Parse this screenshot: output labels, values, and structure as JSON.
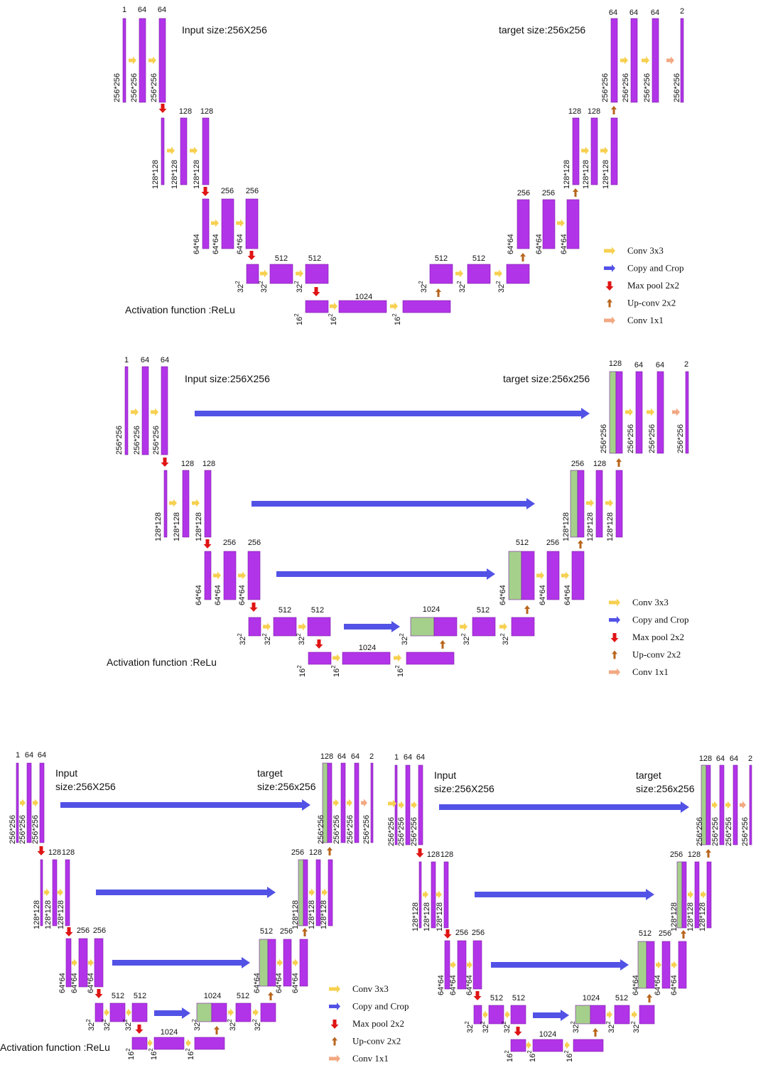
{
  "colors": {
    "feature_map": "#b234e8",
    "feature_map_edge": "#7a1aa8",
    "copied_map": "#a5d08c",
    "conv3x3": "#f7d050",
    "copy_crop": "#5252e6",
    "max_pool": "#e01414",
    "up_conv": "#b8651c",
    "conv1x1": "#f2a882"
  },
  "icons": {
    "conv3x3": "yellow-arrow-right-icon",
    "copy_crop": "blue-arrow-right-icon",
    "max_pool": "red-arrow-down-icon",
    "up_conv": "brown-arrow-up-icon",
    "conv1x1": "salmon-arrow-right-icon"
  },
  "legend": {
    "conv3x3": "Conv 3x3",
    "copy_crop": "Copy and Crop",
    "max_pool": "Max pool 2x2",
    "up_conv": "Up-conv  2x2",
    "conv1x1": "Conv 1x1"
  },
  "labels": {
    "input_size": "Input size:256X256",
    "input": "Input",
    "input_value": "size:256X256",
    "target_size": "target size:256x256",
    "target": "target",
    "target_value": "size:256x256",
    "activation": "Activation function :ReLu"
  },
  "channels": {
    "c1": "1",
    "c2": "2",
    "c64": "64",
    "c128": "128",
    "c256": "256",
    "c512": "512",
    "c1024": "1024"
  },
  "sizes": {
    "s256": "256*256",
    "s128": "128*128",
    "s64": "64*64",
    "s32": "32",
    "s16": "16",
    "sup": "2"
  }
}
